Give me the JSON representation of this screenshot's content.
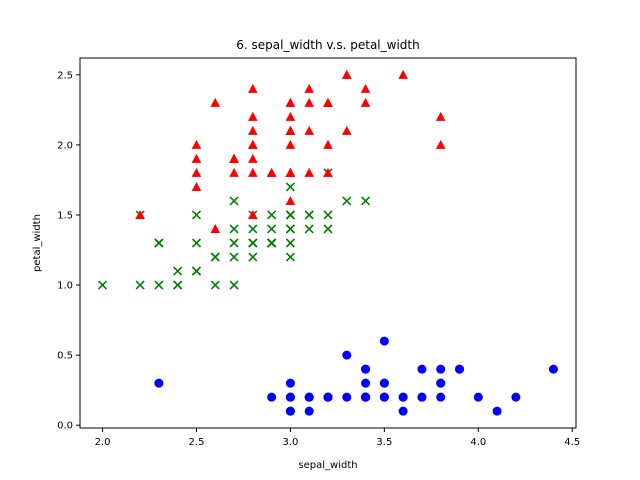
{
  "chart_data": {
    "type": "scatter",
    "title": "6. sepal_width v.s. petal_width",
    "xlabel": "sepal_width",
    "ylabel": "petal_width",
    "xlim": [
      1.88,
      4.52
    ],
    "ylim": [
      -0.02,
      2.62
    ],
    "xticks": [
      2.0,
      2.5,
      3.0,
      3.5,
      4.0,
      4.5
    ],
    "xtick_labels": [
      "2.0",
      "2.5",
      "3.0",
      "3.5",
      "4.0",
      "4.5"
    ],
    "yticks": [
      0.0,
      0.5,
      1.0,
      1.5,
      2.0,
      2.5
    ],
    "ytick_labels": [
      "0.0",
      "0.5",
      "1.0",
      "1.5",
      "2.0",
      "2.5"
    ],
    "grid": false,
    "legend": false,
    "series": [
      {
        "marker": "circle",
        "color": "#0000ff",
        "points": [
          [
            3.5,
            0.2
          ],
          [
            3.0,
            0.2
          ],
          [
            3.2,
            0.2
          ],
          [
            3.1,
            0.2
          ],
          [
            3.6,
            0.2
          ],
          [
            3.9,
            0.4
          ],
          [
            3.4,
            0.3
          ],
          [
            3.4,
            0.2
          ],
          [
            2.9,
            0.2
          ],
          [
            3.1,
            0.1
          ],
          [
            3.7,
            0.2
          ],
          [
            3.4,
            0.2
          ],
          [
            3.0,
            0.1
          ],
          [
            3.0,
            0.1
          ],
          [
            4.0,
            0.2
          ],
          [
            4.4,
            0.4
          ],
          [
            3.9,
            0.4
          ],
          [
            3.5,
            0.3
          ],
          [
            3.8,
            0.3
          ],
          [
            3.8,
            0.3
          ],
          [
            3.4,
            0.2
          ],
          [
            3.7,
            0.4
          ],
          [
            3.6,
            0.2
          ],
          [
            3.3,
            0.5
          ],
          [
            3.4,
            0.2
          ],
          [
            3.0,
            0.2
          ],
          [
            3.4,
            0.4
          ],
          [
            3.5,
            0.2
          ],
          [
            3.4,
            0.2
          ],
          [
            3.2,
            0.2
          ],
          [
            3.1,
            0.2
          ],
          [
            3.4,
            0.4
          ],
          [
            4.1,
            0.1
          ],
          [
            4.2,
            0.2
          ],
          [
            3.1,
            0.2
          ],
          [
            3.2,
            0.2
          ],
          [
            3.5,
            0.2
          ],
          [
            3.6,
            0.1
          ],
          [
            3.0,
            0.2
          ],
          [
            3.4,
            0.2
          ],
          [
            3.5,
            0.3
          ],
          [
            2.3,
            0.3
          ],
          [
            3.2,
            0.2
          ],
          [
            3.5,
            0.6
          ],
          [
            3.8,
            0.4
          ],
          [
            3.0,
            0.3
          ],
          [
            3.8,
            0.2
          ],
          [
            3.2,
            0.2
          ],
          [
            3.7,
            0.2
          ],
          [
            3.3,
            0.2
          ]
        ]
      },
      {
        "marker": "x",
        "color": "#008000",
        "points": [
          [
            3.2,
            1.4
          ],
          [
            3.2,
            1.5
          ],
          [
            3.1,
            1.5
          ],
          [
            2.3,
            1.3
          ],
          [
            2.8,
            1.5
          ],
          [
            2.8,
            1.3
          ],
          [
            3.3,
            1.6
          ],
          [
            2.4,
            1.0
          ],
          [
            2.9,
            1.3
          ],
          [
            2.7,
            1.4
          ],
          [
            2.0,
            1.0
          ],
          [
            3.0,
            1.5
          ],
          [
            2.2,
            1.0
          ],
          [
            2.9,
            1.4
          ],
          [
            2.9,
            1.3
          ],
          [
            3.1,
            1.4
          ],
          [
            3.0,
            1.5
          ],
          [
            2.7,
            1.0
          ],
          [
            2.2,
            1.5
          ],
          [
            2.5,
            1.1
          ],
          [
            3.2,
            1.8
          ],
          [
            2.8,
            1.3
          ],
          [
            2.5,
            1.5
          ],
          [
            2.8,
            1.2
          ],
          [
            2.9,
            1.3
          ],
          [
            3.0,
            1.4
          ],
          [
            2.8,
            1.4
          ],
          [
            3.0,
            1.7
          ],
          [
            2.9,
            1.5
          ],
          [
            2.6,
            1.0
          ],
          [
            2.4,
            1.1
          ],
          [
            2.4,
            1.0
          ],
          [
            2.7,
            1.2
          ],
          [
            2.7,
            1.6
          ],
          [
            3.0,
            1.5
          ],
          [
            3.4,
            1.6
          ],
          [
            3.1,
            1.5
          ],
          [
            2.3,
            1.3
          ],
          [
            3.0,
            1.3
          ],
          [
            2.5,
            1.3
          ],
          [
            2.6,
            1.2
          ],
          [
            3.0,
            1.4
          ],
          [
            2.6,
            1.2
          ],
          [
            2.3,
            1.0
          ],
          [
            2.7,
            1.3
          ],
          [
            3.0,
            1.2
          ],
          [
            2.9,
            1.3
          ],
          [
            2.9,
            1.3
          ],
          [
            2.5,
            1.1
          ],
          [
            2.8,
            1.3
          ]
        ]
      },
      {
        "marker": "triangle",
        "color": "#ff0000",
        "points": [
          [
            3.3,
            2.5
          ],
          [
            2.7,
            1.9
          ],
          [
            3.0,
            2.1
          ],
          [
            2.9,
            1.8
          ],
          [
            3.0,
            2.2
          ],
          [
            3.0,
            2.1
          ],
          [
            2.5,
            1.7
          ],
          [
            2.9,
            1.8
          ],
          [
            2.5,
            1.8
          ],
          [
            3.6,
            2.5
          ],
          [
            3.2,
            2.0
          ],
          [
            2.7,
            1.9
          ],
          [
            3.0,
            2.1
          ],
          [
            2.5,
            2.0
          ],
          [
            2.8,
            2.4
          ],
          [
            3.2,
            2.3
          ],
          [
            3.0,
            1.8
          ],
          [
            3.8,
            2.2
          ],
          [
            2.6,
            2.3
          ],
          [
            2.2,
            1.5
          ],
          [
            3.2,
            2.3
          ],
          [
            2.8,
            2.0
          ],
          [
            2.8,
            2.0
          ],
          [
            2.7,
            1.8
          ],
          [
            3.3,
            2.1
          ],
          [
            3.2,
            1.8
          ],
          [
            2.8,
            1.8
          ],
          [
            3.0,
            1.8
          ],
          [
            2.8,
            2.1
          ],
          [
            3.0,
            1.6
          ],
          [
            2.8,
            1.9
          ],
          [
            3.8,
            2.0
          ],
          [
            2.8,
            2.2
          ],
          [
            2.8,
            1.5
          ],
          [
            2.6,
            1.4
          ],
          [
            3.0,
            2.3
          ],
          [
            3.4,
            2.4
          ],
          [
            3.1,
            1.8
          ],
          [
            3.0,
            1.8
          ],
          [
            3.1,
            2.1
          ],
          [
            3.1,
            2.4
          ],
          [
            3.1,
            2.3
          ],
          [
            2.7,
            1.9
          ],
          [
            3.2,
            2.3
          ],
          [
            3.3,
            2.5
          ],
          [
            3.0,
            2.3
          ],
          [
            2.5,
            1.9
          ],
          [
            3.0,
            2.0
          ],
          [
            3.4,
            2.3
          ],
          [
            3.0,
            1.8
          ]
        ]
      }
    ]
  }
}
